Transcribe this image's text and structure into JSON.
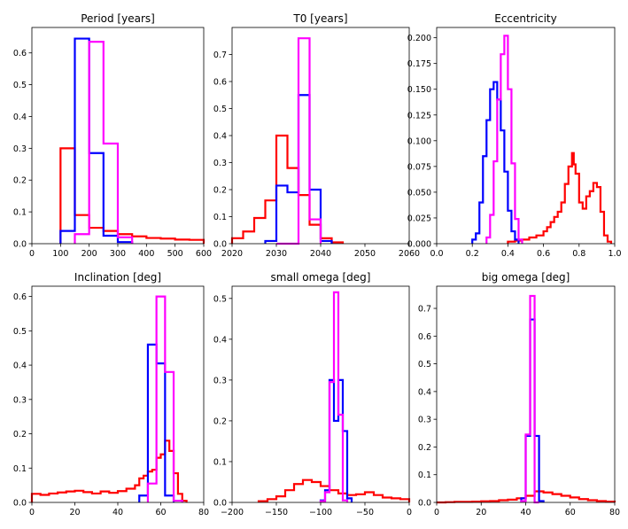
{
  "colors": {
    "red": "#ff0000",
    "blue": "#0000ff",
    "magenta": "#ff00ff",
    "axes": "#000000"
  },
  "chart_data": [
    {
      "type": "step-histogram",
      "title": "Period [years]",
      "xlim": [
        0,
        600
      ],
      "ylim": [
        0,
        0.68
      ],
      "xticks": [
        0,
        100,
        200,
        300,
        400,
        500,
        600
      ],
      "yticks": [
        0.0,
        0.1,
        0.2,
        0.3,
        0.4,
        0.5,
        0.6
      ],
      "series": [
        {
          "color": "red",
          "bins": [
            [
              100,
              150,
              0.3
            ],
            [
              150,
              200,
              0.09
            ],
            [
              200,
              250,
              0.05
            ],
            [
              250,
              300,
              0.04
            ],
            [
              300,
              350,
              0.03
            ],
            [
              350,
              400,
              0.023
            ],
            [
              400,
              450,
              0.018
            ],
            [
              450,
              500,
              0.016
            ],
            [
              500,
              550,
              0.013
            ],
            [
              550,
              600,
              0.012
            ]
          ]
        },
        {
          "color": "blue",
          "bins": [
            [
              100,
              150,
              0.04
            ],
            [
              150,
              200,
              0.645
            ],
            [
              200,
              250,
              0.285
            ],
            [
              250,
              300,
              0.025
            ],
            [
              300,
              350,
              0.005
            ]
          ]
        },
        {
          "color": "magenta",
          "bins": [
            [
              150,
              200,
              0.03
            ],
            [
              200,
              250,
              0.635
            ],
            [
              250,
              300,
              0.315
            ],
            [
              300,
              350,
              0.02
            ]
          ]
        }
      ]
    },
    {
      "type": "step-histogram",
      "title": "T0 [years]",
      "xlim": [
        2020,
        2060
      ],
      "ylim": [
        0,
        0.8
      ],
      "xticks": [
        2020,
        2030,
        2040,
        2050,
        2060
      ],
      "yticks": [
        0.0,
        0.1,
        0.2,
        0.3,
        0.4,
        0.5,
        0.6,
        0.7
      ],
      "series": [
        {
          "color": "red",
          "bins": [
            [
              2020,
              2022.5,
              0.02
            ],
            [
              2022.5,
              2025,
              0.045
            ],
            [
              2025,
              2027.5,
              0.095
            ],
            [
              2027.5,
              2030,
              0.16
            ],
            [
              2030,
              2032.5,
              0.4
            ],
            [
              2032.5,
              2035,
              0.28
            ],
            [
              2035,
              2037.5,
              0.18
            ],
            [
              2037.5,
              2040,
              0.07
            ],
            [
              2040,
              2042.5,
              0.02
            ],
            [
              2042.5,
              2045,
              0.005
            ]
          ]
        },
        {
          "color": "blue",
          "bins": [
            [
              2027.5,
              2030,
              0.01
            ],
            [
              2030,
              2032.5,
              0.215
            ],
            [
              2032.5,
              2035,
              0.19
            ],
            [
              2035,
              2037.5,
              0.55
            ],
            [
              2037.5,
              2040,
              0.2
            ],
            [
              2040,
              2042.5,
              0.01
            ]
          ]
        },
        {
          "color": "magenta",
          "bins": [
            [
              2030,
              2032.5,
              0.0
            ],
            [
              2032.5,
              2035,
              0.0
            ],
            [
              2035,
              2037.5,
              0.76
            ],
            [
              2037.5,
              2040,
              0.09
            ]
          ]
        }
      ]
    },
    {
      "type": "step-histogram",
      "title": "Eccentricity",
      "xlim": [
        0,
        1
      ],
      "ylim": [
        0,
        0.21
      ],
      "xticks": [
        0.0,
        0.2,
        0.4,
        0.6,
        0.8,
        1.0
      ],
      "xtickLabels": [
        "0.0",
        "0.2",
        "0.4",
        "0.6",
        "0.8",
        "1.0"
      ],
      "yticks": [
        0.0,
        0.025,
        0.05,
        0.075,
        0.1,
        0.125,
        0.15,
        0.175,
        0.2
      ],
      "ytickLabels": [
        "0.000",
        "0.025",
        "0.050",
        "0.075",
        "0.100",
        "0.125",
        "0.150",
        "0.175",
        "0.200"
      ],
      "series": [
        {
          "color": "red",
          "bins": [
            [
              0.4,
              0.44,
              0.002
            ],
            [
              0.44,
              0.48,
              0.003
            ],
            [
              0.48,
              0.52,
              0.004
            ],
            [
              0.52,
              0.56,
              0.006
            ],
            [
              0.56,
              0.6,
              0.008
            ],
            [
              0.6,
              0.62,
              0.012
            ],
            [
              0.62,
              0.64,
              0.016
            ],
            [
              0.64,
              0.66,
              0.021
            ],
            [
              0.66,
              0.68,
              0.026
            ],
            [
              0.68,
              0.7,
              0.031
            ],
            [
              0.7,
              0.72,
              0.04
            ],
            [
              0.72,
              0.74,
              0.058
            ],
            [
              0.74,
              0.76,
              0.075
            ],
            [
              0.76,
              0.77,
              0.088
            ],
            [
              0.77,
              0.78,
              0.077
            ],
            [
              0.78,
              0.8,
              0.068
            ],
            [
              0.8,
              0.82,
              0.04
            ],
            [
              0.82,
              0.84,
              0.034
            ],
            [
              0.84,
              0.86,
              0.046
            ],
            [
              0.86,
              0.88,
              0.051
            ],
            [
              0.88,
              0.9,
              0.059
            ],
            [
              0.9,
              0.92,
              0.055
            ],
            [
              0.92,
              0.94,
              0.031
            ],
            [
              0.94,
              0.96,
              0.008
            ],
            [
              0.96,
              0.98,
              0.002
            ]
          ]
        },
        {
          "color": "blue",
          "bins": [
            [
              0.2,
              0.22,
              0.004
            ],
            [
              0.22,
              0.24,
              0.01
            ],
            [
              0.24,
              0.26,
              0.04
            ],
            [
              0.26,
              0.28,
              0.085
            ],
            [
              0.28,
              0.3,
              0.12
            ],
            [
              0.3,
              0.32,
              0.15
            ],
            [
              0.32,
              0.34,
              0.157
            ],
            [
              0.34,
              0.36,
              0.14
            ],
            [
              0.36,
              0.38,
              0.11
            ],
            [
              0.38,
              0.4,
              0.07
            ],
            [
              0.4,
              0.42,
              0.032
            ],
            [
              0.42,
              0.44,
              0.012
            ],
            [
              0.44,
              0.46,
              0.004
            ]
          ]
        },
        {
          "color": "magenta",
          "bins": [
            [
              0.28,
              0.3,
              0.006
            ],
            [
              0.3,
              0.32,
              0.028
            ],
            [
              0.32,
              0.34,
              0.08
            ],
            [
              0.34,
              0.36,
              0.14
            ],
            [
              0.36,
              0.38,
              0.184
            ],
            [
              0.38,
              0.4,
              0.202
            ],
            [
              0.4,
              0.42,
              0.15
            ],
            [
              0.42,
              0.44,
              0.078
            ],
            [
              0.44,
              0.46,
              0.024
            ],
            [
              0.46,
              0.48,
              0.004
            ]
          ]
        }
      ]
    },
    {
      "type": "step-histogram",
      "title": "Inclination [deg]",
      "xlim": [
        0,
        80
      ],
      "ylim": [
        0,
        0.63
      ],
      "xticks": [
        0,
        20,
        40,
        60,
        80
      ],
      "yticks": [
        0.0,
        0.1,
        0.2,
        0.3,
        0.4,
        0.5,
        0.6
      ],
      "series": [
        {
          "color": "red",
          "bins": [
            [
              0,
              4,
              0.025
            ],
            [
              4,
              8,
              0.022
            ],
            [
              8,
              12,
              0.026
            ],
            [
              12,
              16,
              0.029
            ],
            [
              16,
              20,
              0.032
            ],
            [
              20,
              24,
              0.034
            ],
            [
              24,
              28,
              0.03
            ],
            [
              28,
              32,
              0.026
            ],
            [
              32,
              36,
              0.032
            ],
            [
              36,
              40,
              0.028
            ],
            [
              40,
              44,
              0.033
            ],
            [
              44,
              48,
              0.04
            ],
            [
              48,
              50,
              0.05
            ],
            [
              50,
              52,
              0.07
            ],
            [
              52,
              54,
              0.078
            ],
            [
              54,
              56,
              0.09
            ],
            [
              56,
              58,
              0.095
            ],
            [
              58,
              60,
              0.13
            ],
            [
              60,
              62,
              0.14
            ],
            [
              62,
              64,
              0.18
            ],
            [
              64,
              66,
              0.15
            ],
            [
              66,
              68,
              0.085
            ],
            [
              68,
              70,
              0.025
            ],
            [
              70,
              72,
              0.005
            ]
          ]
        },
        {
          "color": "blue",
          "bins": [
            [
              50,
              54,
              0.02
            ],
            [
              54,
              58,
              0.46
            ],
            [
              58,
              62,
              0.405
            ],
            [
              62,
              66,
              0.02
            ]
          ]
        },
        {
          "color": "magenta",
          "bins": [
            [
              54,
              58,
              0.055
            ],
            [
              58,
              62,
              0.6
            ],
            [
              62,
              66,
              0.38
            ],
            [
              66,
              70,
              0.005
            ]
          ]
        }
      ]
    },
    {
      "type": "step-histogram",
      "title": "small omega [deg]",
      "xlim": [
        -200,
        0
      ],
      "ylim": [
        0,
        0.53
      ],
      "xticks": [
        -200,
        -150,
        -100,
        -50,
        0
      ],
      "xtickLabels": [
        "−200",
        "−150",
        "−100",
        "−50",
        "0"
      ],
      "yticks": [
        0.0,
        0.1,
        0.2,
        0.3,
        0.4,
        0.5
      ],
      "series": [
        {
          "color": "red",
          "bins": [
            [
              -170,
              -160,
              0.003
            ],
            [
              -160,
              -150,
              0.008
            ],
            [
              -150,
              -140,
              0.015
            ],
            [
              -140,
              -130,
              0.03
            ],
            [
              -130,
              -120,
              0.045
            ],
            [
              -120,
              -110,
              0.055
            ],
            [
              -110,
              -100,
              0.05
            ],
            [
              -100,
              -90,
              0.04
            ],
            [
              -90,
              -80,
              0.03
            ],
            [
              -80,
              -70,
              0.022
            ],
            [
              -70,
              -60,
              0.018
            ],
            [
              -60,
              -50,
              0.02
            ],
            [
              -50,
              -40,
              0.025
            ],
            [
              -40,
              -30,
              0.018
            ],
            [
              -30,
              -20,
              0.012
            ],
            [
              -20,
              -10,
              0.01
            ],
            [
              -10,
              0,
              0.008
            ]
          ]
        },
        {
          "color": "blue",
          "bins": [
            [
              -100,
              -95,
              0.005
            ],
            [
              -95,
              -90,
              0.03
            ],
            [
              -90,
              -85,
              0.3
            ],
            [
              -85,
              -80,
              0.2
            ],
            [
              -80,
              -75,
              0.3
            ],
            [
              -75,
              -70,
              0.175
            ],
            [
              -70,
              -65,
              0.01
            ]
          ]
        },
        {
          "color": "magenta",
          "bins": [
            [
              -100,
              -95,
              0.003
            ],
            [
              -95,
              -90,
              0.025
            ],
            [
              -90,
              -85,
              0.295
            ],
            [
              -85,
              -80,
              0.515
            ],
            [
              -80,
              -75,
              0.215
            ],
            [
              -75,
              -70,
              0.005
            ]
          ]
        }
      ]
    },
    {
      "type": "step-histogram",
      "title": "big omega [deg]",
      "xlim": [
        0,
        80
      ],
      "ylim": [
        0,
        0.78
      ],
      "xticks": [
        0,
        20,
        40,
        60,
        80
      ],
      "yticks": [
        0.0,
        0.1,
        0.2,
        0.3,
        0.4,
        0.5,
        0.6,
        0.7
      ],
      "series": [
        {
          "color": "red",
          "bins": [
            [
              0,
              4,
              0.0
            ],
            [
              4,
              8,
              0.001
            ],
            [
              8,
              12,
              0.002
            ],
            [
              12,
              16,
              0.002
            ],
            [
              16,
              20,
              0.003
            ],
            [
              20,
              24,
              0.004
            ],
            [
              24,
              28,
              0.005
            ],
            [
              28,
              32,
              0.008
            ],
            [
              32,
              36,
              0.01
            ],
            [
              36,
              40,
              0.015
            ],
            [
              40,
              44,
              0.024
            ],
            [
              44,
              48,
              0.04
            ],
            [
              48,
              52,
              0.036
            ],
            [
              52,
              56,
              0.03
            ],
            [
              56,
              60,
              0.024
            ],
            [
              60,
              64,
              0.018
            ],
            [
              64,
              68,
              0.012
            ],
            [
              68,
              72,
              0.008
            ],
            [
              72,
              76,
              0.005
            ],
            [
              76,
              80,
              0.003
            ]
          ]
        },
        {
          "color": "blue",
          "bins": [
            [
              38,
              40,
              0.015
            ],
            [
              40,
              42,
              0.24
            ],
            [
              42,
              44,
              0.66
            ],
            [
              44,
              46,
              0.24
            ],
            [
              46,
              48,
              0.005
            ]
          ]
        },
        {
          "color": "magenta",
          "bins": [
            [
              38,
              40,
              0.005
            ],
            [
              40,
              42,
              0.245
            ],
            [
              42,
              44,
              0.745
            ],
            [
              44,
              46,
              0.0
            ]
          ]
        }
      ]
    }
  ]
}
